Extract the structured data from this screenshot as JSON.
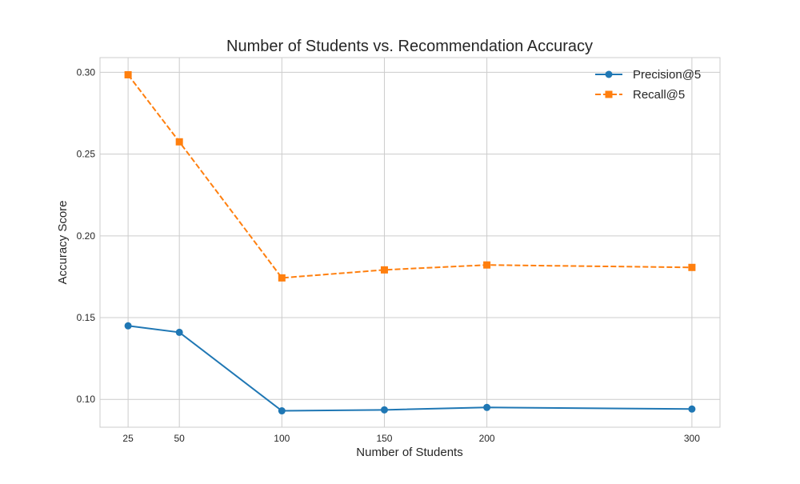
{
  "chart_data": {
    "type": "line",
    "title": "Number of Students vs. Recommendation Accuracy",
    "xlabel": "Number of Students",
    "ylabel": "Accuracy Score",
    "x": [
      25,
      50,
      100,
      150,
      200,
      300
    ],
    "xticks": [
      "25",
      "50",
      "100",
      "150",
      "200",
      "300"
    ],
    "yticks": [
      "0.10",
      "0.15",
      "0.20",
      "0.25",
      "0.30"
    ],
    "xlim": [
      11.3,
      313.7
    ],
    "ylim": [
      0.083,
      0.309
    ],
    "grid": true,
    "legend_position": "top-right",
    "series": [
      {
        "name": "Precision@5",
        "values": [
          0.145,
          0.141,
          0.093,
          0.0936,
          0.0951,
          0.0941
        ],
        "color": "#1f77b4",
        "marker": "circle",
        "linestyle": "solid"
      },
      {
        "name": "Recall@5",
        "values": [
          0.2985,
          0.2575,
          0.1743,
          0.1792,
          0.1822,
          0.1807
        ],
        "color": "#ff7f0e",
        "marker": "square",
        "linestyle": "dashed"
      }
    ]
  }
}
